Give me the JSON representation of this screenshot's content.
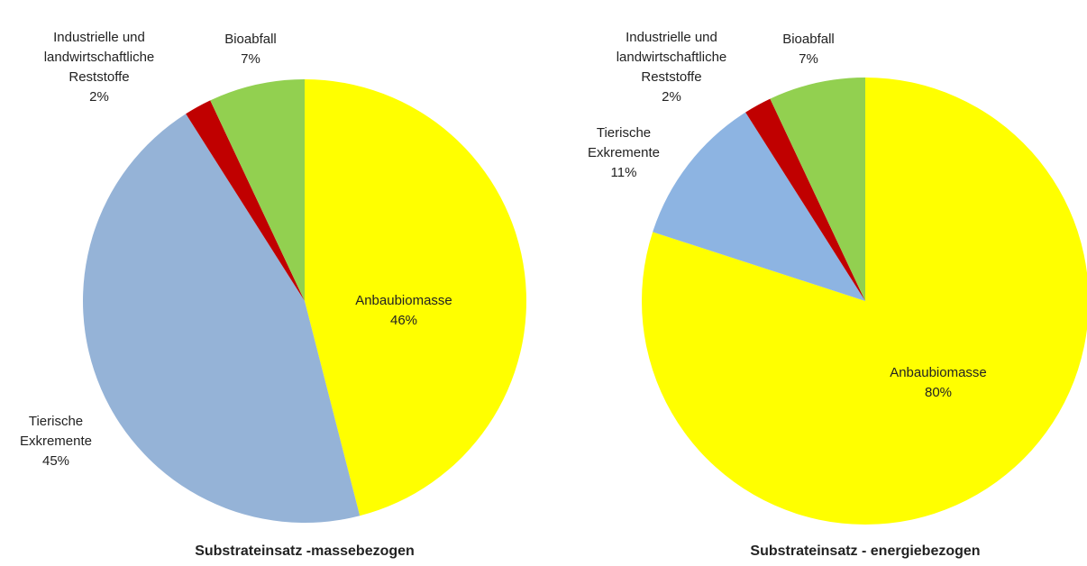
{
  "chart_data": [
    {
      "type": "pie",
      "title": "Substrateinsatz -massebezogen",
      "categories": [
        "Anbaubiomasse",
        "Tierische Exkremente",
        "Industrielle und landwirtschaftliche Reststoffe",
        "Bioabfall"
      ],
      "values": [
        46,
        45,
        2,
        7
      ],
      "value_labels": [
        "46%",
        "45%",
        "2%",
        "7%"
      ],
      "colors": [
        "#ffff00",
        "#95b3d7",
        "#c00000",
        "#92d050"
      ]
    },
    {
      "type": "pie",
      "title": "Substrateinsatz  - energiebezogen",
      "categories": [
        "Anbaubiomasse",
        "Tierische Exkremente",
        "Industrielle und landwirtschaftliche Reststoffe",
        "Bioabfall"
      ],
      "values": [
        80,
        11,
        2,
        7
      ],
      "value_labels": [
        "80%",
        "11%",
        "2%",
        "7%"
      ],
      "colors": [
        "#ffff00",
        "#8db4e2",
        "#c00000",
        "#92d050"
      ]
    }
  ]
}
